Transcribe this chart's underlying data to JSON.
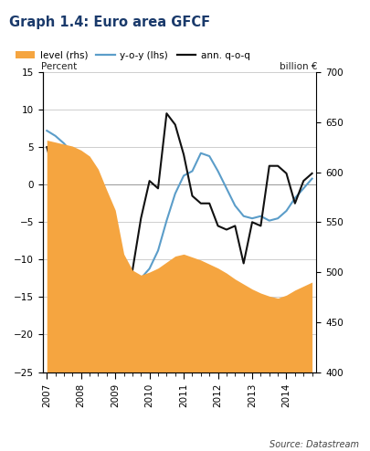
{
  "title": "Graph 1.4: Euro area GFCF",
  "title_bg": "#c5d5e8",
  "source": "Source: Datastream",
  "left_label": "Percent",
  "right_label": "billion €",
  "ylim_left": [
    -25,
    15
  ],
  "ylim_right": [
    400,
    700
  ],
  "yticks_left": [
    -25,
    -20,
    -15,
    -10,
    -5,
    0,
    5,
    10,
    15
  ],
  "yticks_right": [
    400,
    450,
    500,
    550,
    600,
    650,
    700
  ],
  "level_rhs": [
    632,
    630,
    628,
    626,
    622,
    616,
    603,
    582,
    562,
    518,
    502,
    497,
    500,
    504,
    510,
    516,
    518,
    515,
    512,
    508,
    504,
    499,
    493,
    488,
    483,
    479,
    476,
    474,
    477,
    482,
    486,
    490
  ],
  "yoy_lhs": [
    7.2,
    6.5,
    5.5,
    4.2,
    2.8,
    2.2,
    0.2,
    -2.8,
    -7.2,
    -11.0,
    -12.5,
    -12.5,
    -11.2,
    -8.8,
    -4.8,
    -1.2,
    1.2,
    1.8,
    4.2,
    3.8,
    1.8,
    -0.5,
    -2.8,
    -4.2,
    -4.5,
    -4.2,
    -4.8,
    -4.5,
    -3.5,
    -1.8,
    -0.5,
    0.8
  ],
  "ann_qoq_lhs": [
    5.0,
    1.0,
    3.5,
    4.0,
    -5.5,
    -6.5,
    -9.0,
    -14.5,
    -20.5,
    -12.0,
    -11.5,
    -4.5,
    0.5,
    -0.5,
    9.5,
    8.0,
    4.0,
    -1.5,
    -2.5,
    -2.5,
    -5.5,
    -6.0,
    -5.5,
    -10.5,
    -5.0,
    -5.5,
    2.5,
    2.5,
    1.5,
    -2.5,
    0.5,
    1.5
  ],
  "orange_color": "#f5a540",
  "blue_color": "#5b9dc9",
  "black_color": "#111111",
  "grid_color": "#bbbbbb",
  "year_labels": [
    "2007",
    "2008",
    "2009",
    "2010",
    "2011",
    "2012",
    "2013",
    "2014"
  ],
  "year_positions": [
    0,
    4,
    8,
    12,
    16,
    20,
    24,
    28
  ]
}
